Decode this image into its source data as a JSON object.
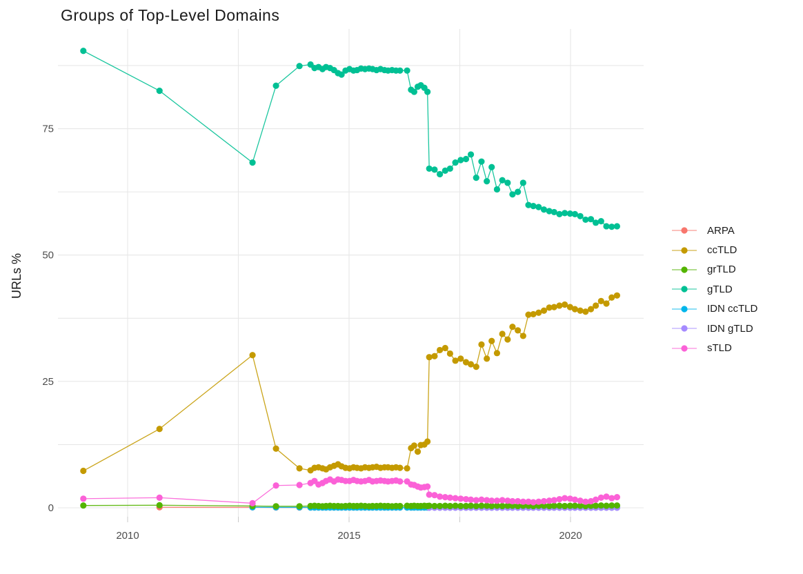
{
  "chart_data": {
    "type": "scatter-line",
    "title": "Groups of Top-Level Domains",
    "xlabel": "",
    "ylabel": "URLs %",
    "legend_position": "right",
    "grid": true,
    "x_range": [
      2008.5,
      2021.8
    ],
    "y_range": [
      -2,
      94
    ],
    "x_tick_labels": [
      {
        "value": 2010,
        "label": "2010"
      },
      {
        "value": 2015,
        "label": "2015"
      },
      {
        "value": 2020,
        "label": "2020"
      }
    ],
    "y_tick_labels": [
      {
        "value": 0,
        "label": "0"
      },
      {
        "value": 25,
        "label": "25"
      },
      {
        "value": 50,
        "label": "50"
      },
      {
        "value": 75,
        "label": "75"
      }
    ],
    "x_gridlines": [
      2010,
      2012.5,
      2015,
      2017.5,
      2020
    ],
    "y_gridlines": [
      0,
      12.5,
      25,
      37.5,
      50,
      62.5,
      75,
      87.5
    ],
    "x": [
      2009.0,
      2010.72,
      2012.82,
      2013.35,
      2013.88,
      2014.13,
      2014.22,
      2014.31,
      2014.4,
      2014.48,
      2014.57,
      2014.66,
      2014.75,
      2014.83,
      2014.92,
      2015.01,
      2015.1,
      2015.18,
      2015.27,
      2015.36,
      2015.45,
      2015.53,
      2015.62,
      2015.71,
      2015.8,
      2015.88,
      2015.97,
      2016.06,
      2016.15,
      2016.31,
      2016.4,
      2016.47,
      2016.55,
      2016.62,
      2016.7,
      2016.77,
      2016.81,
      2016.93,
      2017.05,
      2017.17,
      2017.28,
      2017.4,
      2017.52,
      2017.64,
      2017.75,
      2017.87,
      2017.99,
      2018.11,
      2018.22,
      2018.34,
      2018.46,
      2018.58,
      2018.69,
      2018.81,
      2018.93,
      2019.05,
      2019.16,
      2019.28,
      2019.4,
      2019.52,
      2019.63,
      2019.75,
      2019.87,
      2019.99,
      2020.1,
      2020.22,
      2020.34,
      2020.46,
      2020.57,
      2020.69,
      2020.81,
      2020.93,
      2021.05
    ],
    "series": [
      {
        "name": "ARPA",
        "color": "#F8766D",
        "y": [
          null,
          0.1,
          0.08,
          0.06,
          0.06,
          0.05,
          0.05,
          0.05,
          0.05,
          0.05,
          0.05,
          0.05,
          0.05,
          0.05,
          0.05,
          0.05,
          0.05,
          0.05,
          0.05,
          0.05,
          0.05,
          0.05,
          0.05,
          0.05,
          0.05,
          0.05,
          0.05,
          0.05,
          0.05,
          0.05,
          0.05,
          0.05,
          0.05,
          0.05,
          0.05,
          0.05,
          0.05,
          0.05,
          0.05,
          0.05,
          0.05,
          0.05,
          0.05,
          0.05,
          0.05,
          0.05,
          0.05,
          0.05,
          0.05,
          0.05,
          0.05,
          0.05,
          0.05,
          0.05,
          0.05,
          0.05,
          0.05,
          0.05,
          0.05,
          0.05,
          0.05,
          0.05,
          0.05,
          0.05,
          0.05,
          0.05,
          0.05,
          0.05,
          0.05,
          0.05,
          0.05,
          0.05,
          0.05
        ]
      },
      {
        "name": "ccTLD",
        "color": "#C49A00",
        "y": [
          7.3,
          15.6,
          30.2,
          11.7,
          7.8,
          7.4,
          7.9,
          8.0,
          7.8,
          7.6,
          8.0,
          8.3,
          8.6,
          8.2,
          7.9,
          7.8,
          8.0,
          7.9,
          7.8,
          8.0,
          7.9,
          8.0,
          8.1,
          7.9,
          8.0,
          8.0,
          7.9,
          8.0,
          7.9,
          7.8,
          11.8,
          12.3,
          11.1,
          12.4,
          12.5,
          13.1,
          29.8,
          30.0,
          31.2,
          31.6,
          30.5,
          29.1,
          29.5,
          28.8,
          28.4,
          27.9,
          32.3,
          29.5,
          33.0,
          30.6,
          34.4,
          33.3,
          35.8,
          35.1,
          34.0,
          38.2,
          38.3,
          38.6,
          39.0,
          39.6,
          39.7,
          40.0,
          40.2,
          39.7,
          39.3,
          39.0,
          38.8,
          39.3,
          40.0,
          40.9,
          40.4,
          41.6,
          42.0
        ]
      },
      {
        "name": "grTLD",
        "color": "#53B400",
        "y": [
          0.45,
          0.5,
          0.35,
          0.3,
          0.3,
          0.35,
          0.4,
          0.35,
          0.3,
          0.35,
          0.4,
          0.35,
          0.35,
          0.3,
          0.35,
          0.4,
          0.35,
          0.35,
          0.4,
          0.35,
          0.3,
          0.35,
          0.35,
          0.4,
          0.35,
          0.35,
          0.3,
          0.35,
          0.35,
          0.4,
          0.35,
          0.4,
          0.35,
          0.35,
          0.4,
          0.35,
          0.4,
          0.35,
          0.35,
          0.4,
          0.35,
          0.4,
          0.35,
          0.35,
          0.4,
          0.35,
          0.4,
          0.4,
          0.35,
          0.4,
          0.35,
          0.4,
          0.4,
          0.35,
          0.4,
          0.4,
          0.35,
          0.4,
          0.4,
          0.35,
          0.4,
          0.4,
          0.35,
          0.4,
          0.4,
          0.4,
          0.35,
          0.4,
          0.4,
          0.45,
          0.4,
          0.45,
          0.45
        ]
      },
      {
        "name": "gTLD",
        "color": "#00C094",
        "y": [
          90.4,
          82.5,
          68.3,
          83.5,
          87.4,
          87.7,
          87.0,
          87.2,
          86.8,
          87.2,
          87.0,
          86.6,
          86.0,
          85.7,
          86.5,
          86.8,
          86.5,
          86.6,
          86.9,
          86.8,
          86.9,
          86.8,
          86.6,
          86.8,
          86.6,
          86.5,
          86.6,
          86.5,
          86.5,
          86.5,
          82.7,
          82.3,
          83.3,
          83.6,
          83.1,
          82.3,
          67.1,
          66.9,
          66.0,
          66.7,
          67.1,
          68.3,
          68.8,
          69.0,
          69.9,
          65.3,
          68.5,
          64.6,
          67.4,
          63.0,
          64.8,
          64.3,
          62.0,
          62.5,
          64.3,
          59.9,
          59.7,
          59.5,
          59.0,
          58.7,
          58.5,
          58.1,
          58.3,
          58.2,
          58.1,
          57.7,
          57.0,
          57.1,
          56.4,
          56.7,
          55.7,
          55.6,
          55.7
        ]
      },
      {
        "name": "IDN ccTLD",
        "color": "#00B6EB",
        "y": [
          null,
          null,
          0.1,
          0.08,
          0.08,
          0.06,
          0.06,
          0.06,
          0.06,
          0.06,
          0.06,
          0.06,
          0.06,
          0.06,
          0.06,
          0.06,
          0.06,
          0.06,
          0.06,
          0.06,
          0.06,
          0.06,
          0.06,
          0.06,
          0.06,
          0.06,
          0.06,
          0.06,
          0.06,
          0.06,
          0.06,
          0.06,
          0.06,
          0.06,
          0.06,
          0.06,
          0.05,
          0.05,
          0.05,
          0.05,
          0.05,
          0.05,
          0.05,
          0.05,
          0.05,
          0.05,
          0.05,
          0.05,
          0.05,
          0.05,
          0.05,
          0.05,
          0.05,
          0.05,
          0.05,
          0.05,
          0.05,
          0.05,
          0.05,
          0.05,
          0.05,
          0.05,
          0.05,
          0.05,
          0.05,
          0.05,
          0.05,
          0.05,
          0.05,
          0.05,
          0.05,
          0.05,
          0.05
        ]
      },
      {
        "name": "IDN gTLD",
        "color": "#A58AFF",
        "y": [
          null,
          null,
          null,
          null,
          null,
          null,
          null,
          null,
          null,
          null,
          null,
          null,
          null,
          null,
          null,
          null,
          null,
          null,
          null,
          null,
          null,
          null,
          null,
          null,
          null,
          null,
          null,
          null,
          null,
          null,
          null,
          null,
          null,
          null,
          null,
          null,
          0.02,
          0.02,
          0.02,
          0.02,
          0.02,
          0.02,
          0.02,
          0.02,
          0.02,
          0.02,
          0.02,
          0.02,
          0.02,
          0.02,
          0.02,
          0.02,
          0.02,
          0.02,
          0.02,
          0.02,
          0.02,
          0.02,
          0.02,
          0.02,
          0.02,
          0.02,
          0.02,
          0.02,
          0.02,
          0.02,
          0.02,
          0.02,
          0.02,
          0.02,
          0.02,
          0.02,
          0.02
        ]
      },
      {
        "name": "sTLD",
        "color": "#FB61D7",
        "y": [
          1.8,
          2.0,
          0.9,
          4.4,
          4.5,
          4.9,
          5.3,
          4.6,
          4.9,
          5.3,
          5.6,
          5.2,
          5.6,
          5.5,
          5.3,
          5.3,
          5.5,
          5.3,
          5.2,
          5.3,
          5.5,
          5.2,
          5.3,
          5.4,
          5.3,
          5.2,
          5.3,
          5.4,
          5.2,
          5.2,
          4.6,
          4.5,
          4.2,
          4.0,
          4.1,
          4.2,
          2.6,
          2.5,
          2.2,
          2.1,
          2.0,
          1.9,
          1.8,
          1.7,
          1.6,
          1.5,
          1.6,
          1.5,
          1.4,
          1.4,
          1.5,
          1.4,
          1.3,
          1.3,
          1.2,
          1.2,
          1.1,
          1.2,
          1.3,
          1.4,
          1.5,
          1.7,
          1.9,
          1.8,
          1.6,
          1.4,
          1.2,
          1.3,
          1.6,
          2.0,
          2.2,
          1.9,
          2.1
        ]
      }
    ],
    "draw_order": [
      0,
      4,
      5,
      2,
      1,
      3,
      6
    ]
  }
}
